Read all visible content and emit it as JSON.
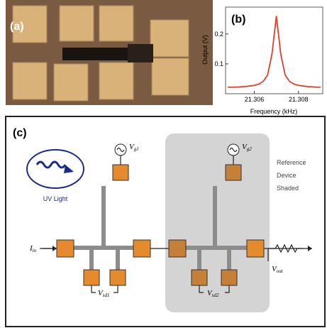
{
  "panel_a": {
    "label": "(a)"
  },
  "chart_data": {
    "type": "line",
    "label": "(b)",
    "xlabel": "Frequency (kHz)",
    "ylabel": "Output (V)",
    "x": [
      21.3048,
      21.305,
      21.3052,
      21.3054,
      21.3056,
      21.3058,
      21.306,
      21.3062,
      21.3064,
      21.3066,
      21.3068,
      21.307,
      21.3072,
      21.3074,
      21.3076,
      21.3078,
      21.308,
      21.3082,
      21.3084,
      21.3086,
      21.3088,
      21.309
    ],
    "series": [
      {
        "color": "#e0402a",
        "values": [
          0.022,
          0.022,
          0.022,
          0.023,
          0.024,
          0.026,
          0.028,
          0.032,
          0.041,
          0.062,
          0.132,
          0.26,
          0.132,
          0.062,
          0.041,
          0.032,
          0.028,
          0.026,
          0.024,
          0.023,
          0.022,
          0.022
        ]
      }
    ],
    "xlim": [
      21.3047,
      21.3091
    ],
    "xticks": [
      21.306,
      21.308
    ],
    "ylim": [
      0,
      0.29
    ],
    "yticks": [
      0.1,
      0.2
    ],
    "grid": false
  },
  "panel_c": {
    "label": "(c)",
    "uv_label": "UV Light",
    "reference_text": [
      "Reference",
      "Device",
      "Shaded"
    ],
    "vg1": {
      "main": "V",
      "sub": "g1"
    },
    "vg2": {
      "main": "V",
      "sub": "g2"
    },
    "iin": {
      "main": "I",
      "sub": "in"
    },
    "vout": {
      "main": "V",
      "sub": "out"
    },
    "vsd1": {
      "main": "V",
      "sub": "sd1"
    },
    "vsd2": {
      "main": "V",
      "sub": "sd2"
    }
  }
}
